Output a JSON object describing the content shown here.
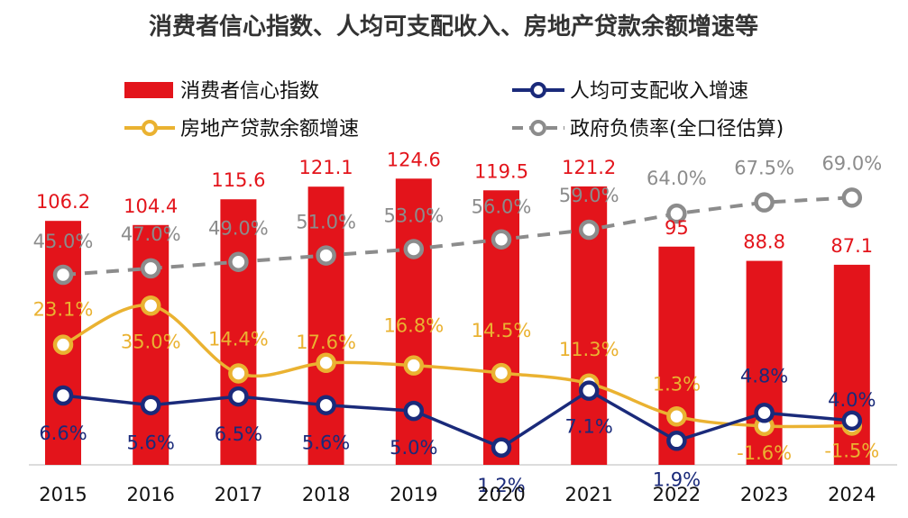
{
  "chart_data": {
    "type": "bar",
    "title": "消费者信心指数、人均可支配收入、房地产贷款余额增速等",
    "categories": [
      "2015",
      "2016",
      "2017",
      "2018",
      "2019",
      "2020",
      "2021",
      "2022",
      "2023",
      "2024"
    ],
    "series": [
      {
        "name": "消费者信心指数",
        "type": "bar",
        "color": "#e3141b",
        "values": [
          106.2,
          104.4,
          115.6,
          121.1,
          124.6,
          119.5,
          121.2,
          95,
          88.8,
          87.1
        ],
        "labels": [
          "106.2",
          "104.4",
          "115.6",
          "121.1",
          "124.6",
          "119.5",
          "121.2",
          "95",
          "88.8",
          "87.1"
        ]
      },
      {
        "name": "人均可支配收入增速",
        "type": "line",
        "color": "#1a2a7a",
        "values": [
          6.6,
          5.6,
          6.5,
          5.6,
          5.0,
          1.2,
          7.1,
          1.9,
          4.8,
          4.0
        ],
        "labels": [
          "6.6%",
          "5.6%",
          "6.5%",
          "5.6%",
          "5.0%",
          "1.2%",
          "7.1%",
          "1.9%",
          "4.8%",
          "4.0%"
        ]
      },
      {
        "name": "房地产贷款余额增速",
        "type": "line",
        "color": "#eab231",
        "values": [
          23.1,
          35.0,
          14.4,
          17.6,
          16.8,
          14.5,
          11.3,
          1.3,
          -1.6,
          -1.5
        ],
        "labels": [
          "23.1%",
          "35.0%",
          "14.4%",
          "17.6%",
          "16.8%",
          "14.5%",
          "11.3%",
          "1.3%",
          "-1.6%",
          "-1.5%"
        ]
      },
      {
        "name": "政府负债率(全口径估算)",
        "type": "line",
        "dashed": true,
        "color": "#8c8c8c",
        "values": [
          45.0,
          47.0,
          49.0,
          51.0,
          53.0,
          56.0,
          59.0,
          64.0,
          67.5,
          69.0
        ],
        "labels": [
          "45.0%",
          "47.0%",
          "49.0%",
          "51.0%",
          "53.0%",
          "56.0%",
          "59.0%",
          "64.0%",
          "67.5%",
          "69.0%"
        ]
      }
    ],
    "legend_position": "top",
    "grid": false
  }
}
